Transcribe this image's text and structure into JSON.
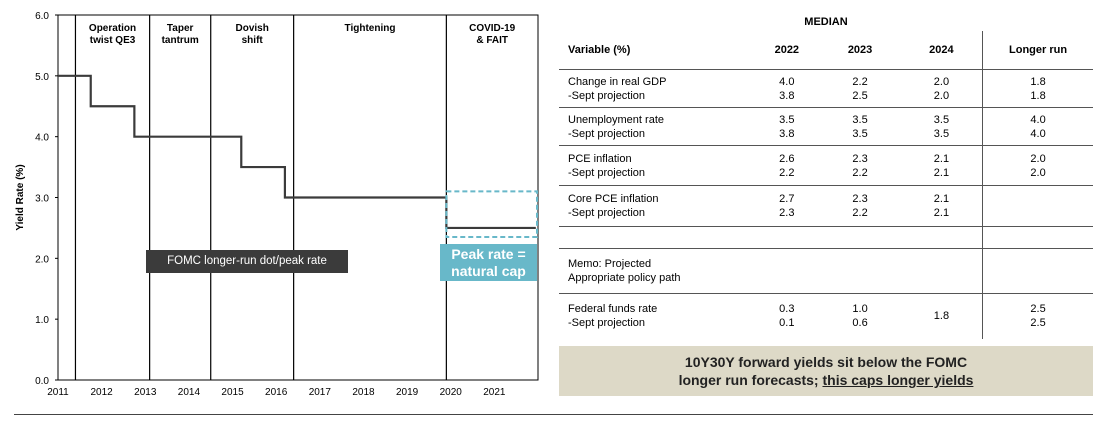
{
  "chart_data": {
    "type": "line",
    "ylabel": "Yield Rate (%)",
    "ylim": [
      0,
      6
    ],
    "yticks": [
      "0.0",
      "1.0",
      "2.0",
      "3.0",
      "4.0",
      "5.0",
      "6.0"
    ],
    "xlim": [
      2011,
      2022
    ],
    "xticks": [
      "2011",
      "2012",
      "2013",
      "2014",
      "2015",
      "2016",
      "2017",
      "2018",
      "2019",
      "2020",
      "2021"
    ],
    "series": [
      {
        "x": [
          2011.0,
          2011.75,
          2011.75,
          2012.75,
          2012.75,
          2015.2,
          2015.2,
          2016.2,
          2016.2,
          2019.9,
          2019.9,
          2021.95
        ],
        "y": [
          5.0,
          5.0,
          4.5,
          4.5,
          4.0,
          4.0,
          3.5,
          3.5,
          3.0,
          3.0,
          2.5,
          2.5
        ]
      }
    ],
    "eras": [
      {
        "label": [
          "Operation",
          "twist QE3"
        ],
        "start": 2011.4,
        "end": 2013.1
      },
      {
        "label": [
          "Taper",
          "tantrum"
        ],
        "start": 2013.1,
        "end": 2014.5
      },
      {
        "label": [
          "Dovish",
          "shift"
        ],
        "start": 2014.5,
        "end": 2016.4
      },
      {
        "label": [
          "Tightening"
        ],
        "start": 2016.4,
        "end": 2019.9
      },
      {
        "label": [
          "COVID-19",
          "& FAIT"
        ],
        "start": 2019.9,
        "end": 2022.0
      }
    ],
    "annotations": {
      "fomc_label": "FOMC longer-run dot/peak rate",
      "peak_label_line1": "Peak rate =",
      "peak_label_line2": "natural cap"
    }
  },
  "table": {
    "median_header": "MEDIAN",
    "columns": [
      "Variable (%)",
      "2022",
      "2023",
      "2024",
      "Longer run"
    ],
    "rows": [
      {
        "label": "Change in real GDP",
        "sub": "-Sept projection",
        "v": [
          "4.0",
          "2.2",
          "2.0",
          "1.8"
        ],
        "s": [
          "3.8",
          "2.5",
          "2.0",
          "1.8"
        ]
      },
      {
        "label": "Unemployment rate",
        "sub": "-Sept projection",
        "v": [
          "3.5",
          "3.5",
          "3.5",
          "4.0"
        ],
        "s": [
          "3.8",
          "3.5",
          "3.5",
          "4.0"
        ]
      },
      {
        "label": "PCE inflation",
        "sub": "-Sept projection",
        "v": [
          "2.6",
          "2.3",
          "2.1",
          "2.0"
        ],
        "s": [
          "2.2",
          "2.2",
          "2.1",
          "2.0"
        ]
      },
      {
        "label": "Core PCE inflation",
        "sub": "-Sept projection",
        "v": [
          "2.7",
          "2.3",
          "2.1",
          ""
        ],
        "s": [
          "2.3",
          "2.2",
          "2.1",
          ""
        ]
      }
    ],
    "memo_line1": "Memo: Projected",
    "memo_line2": "Appropriate policy path",
    "ffr": {
      "label": "Federal funds rate",
      "sub": "-Sept projection",
      "v": [
        "0.3",
        "1.0",
        "1.8",
        "2.5"
      ],
      "s": [
        "0.1",
        "0.6",
        "",
        "2.5"
      ]
    }
  },
  "callout": {
    "line1": "10Y30Y forward yields sit below the FOMC",
    "line2_plain": "longer run forecasts; ",
    "line2_underlined": "this caps longer yields"
  }
}
